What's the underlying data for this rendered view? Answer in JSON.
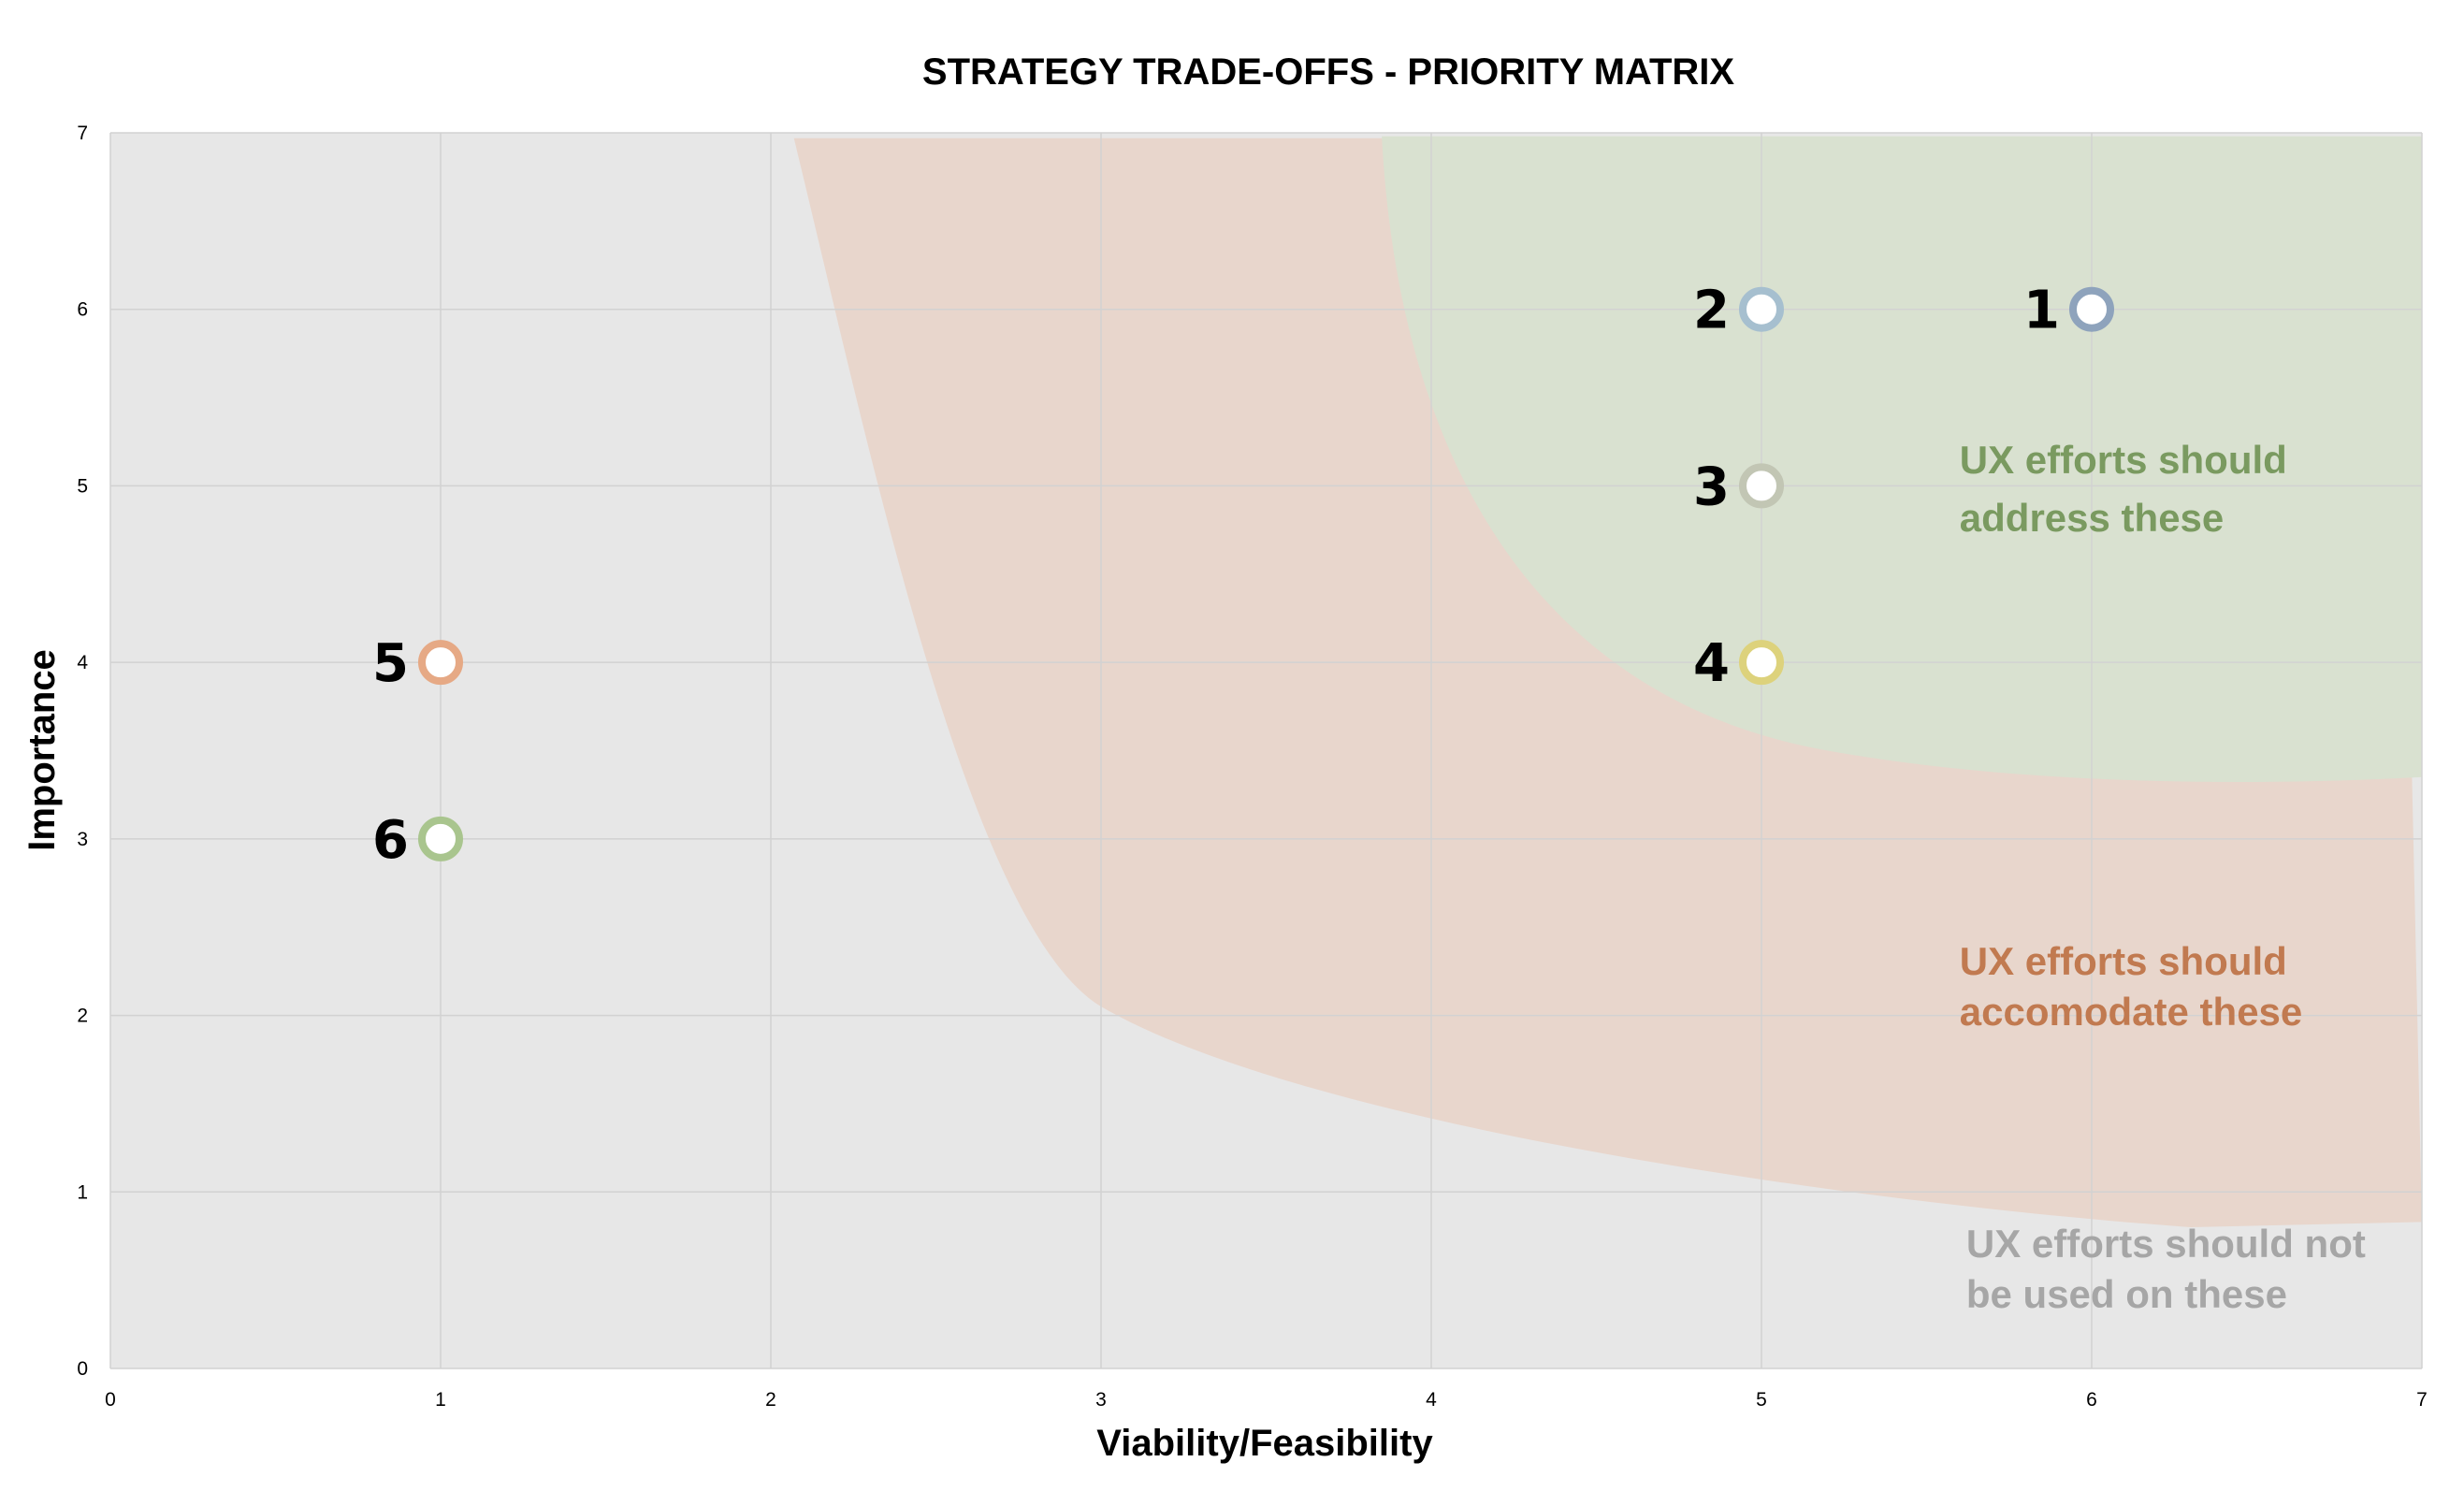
{
  "colors": {
    "plot_bg": "#e7e7e7",
    "grid": "#d2d2d2",
    "zone_accommodate": "#e8d6cc",
    "zone_address": "#d9e1d0",
    "text_address": "#7a9a60",
    "text_accommodate": "#c17a50",
    "text_not_used": "#a6a6a6"
  },
  "chart_data": {
    "type": "scatter",
    "title": "STRATEGY TRADE-OFFS - PRIORITY MATRIX",
    "xlabel": "Viability/Feasibility",
    "ylabel": "Importance",
    "xlim": [
      0,
      7
    ],
    "ylim": [
      0,
      7
    ],
    "x_ticks": [
      "0",
      "1",
      "2",
      "3",
      "4",
      "5",
      "6",
      "7"
    ],
    "y_ticks": [
      "0",
      "1",
      "2",
      "3",
      "4",
      "5",
      "6",
      "7"
    ],
    "grid": true,
    "points": [
      {
        "label": "1",
        "x": 6,
        "y": 6,
        "color": "#8ea3bc"
      },
      {
        "label": "2",
        "x": 5,
        "y": 6,
        "color": "#a6bfcf"
      },
      {
        "label": "3",
        "x": 5,
        "y": 5,
        "color": "#c2c6b4"
      },
      {
        "label": "4",
        "x": 5,
        "y": 4,
        "color": "#ddd27c"
      },
      {
        "label": "5",
        "x": 1,
        "y": 4,
        "color": "#e6a985"
      },
      {
        "label": "6",
        "x": 1,
        "y": 3,
        "color": "#a9c58e"
      }
    ],
    "zone_labels": {
      "address": [
        "UX efforts should",
        "address these"
      ],
      "accommodate": [
        "UX efforts should",
        "accomodate these"
      ],
      "not_used": [
        "UX efforts should not",
        "be used on these"
      ]
    }
  }
}
